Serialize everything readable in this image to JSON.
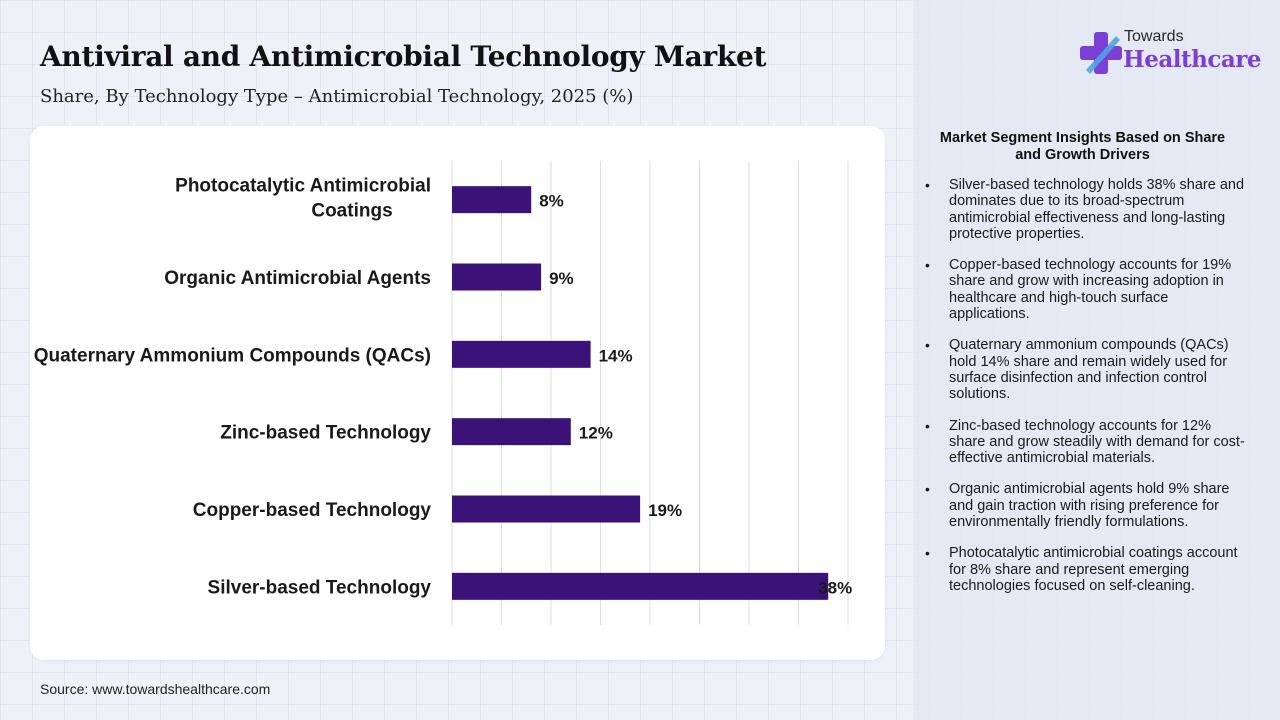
{
  "header": {
    "title": "Antiviral and Antimicrobial Technology Market",
    "subtitle": "Share, By Technology Type – Antimicrobial Technology, 2025 (%)"
  },
  "brand": {
    "line1": "Towards",
    "line2": "Healthcare",
    "primary_color": "#7b3fd6",
    "secondary_color": "#4fa3e0"
  },
  "chart_data": {
    "type": "bar",
    "orientation": "horizontal",
    "categories": [
      "Photocatalytic Antimicrobial Coatings",
      "Organic Antimicrobial Agents",
      "Quaternary Ammonium Compounds (QACs)",
      "Zinc-based Technology",
      "Copper-based Technology",
      "Silver-based Technology"
    ],
    "values": [
      8,
      9,
      14,
      12,
      19,
      38
    ],
    "value_labels": [
      "8%",
      "9%",
      "14%",
      "12%",
      "19%",
      "38%"
    ],
    "unit": "%",
    "xlim": [
      0,
      40
    ],
    "grid": true,
    "bar_color": "#3b1278"
  },
  "insights": {
    "title": "Market Segment Insights Based on Share and Growth Drivers",
    "items": [
      "Silver-based technology holds 38% share and dominates due to its broad-spectrum antimicrobial effectiveness and long-lasting protective properties.",
      "Copper-based technology accounts for 19% share and grow with increasing adoption in healthcare and high-touch surface applications.",
      "Quaternary ammonium compounds (QACs) hold 14% share and remain widely used for surface disinfection and infection control solutions.",
      "Zinc-based technology accounts for 12% share and grow steadily with demand for cost-effective antimicrobial materials.",
      "Organic antimicrobial agents hold 9% share and gain traction with rising preference for environmentally friendly formulations.",
      "Photocatalytic antimicrobial coatings account for 8% share and represent emerging technologies focused on self-cleaning."
    ]
  },
  "footer": {
    "source": "Source: www.towardshealthcare.com"
  }
}
